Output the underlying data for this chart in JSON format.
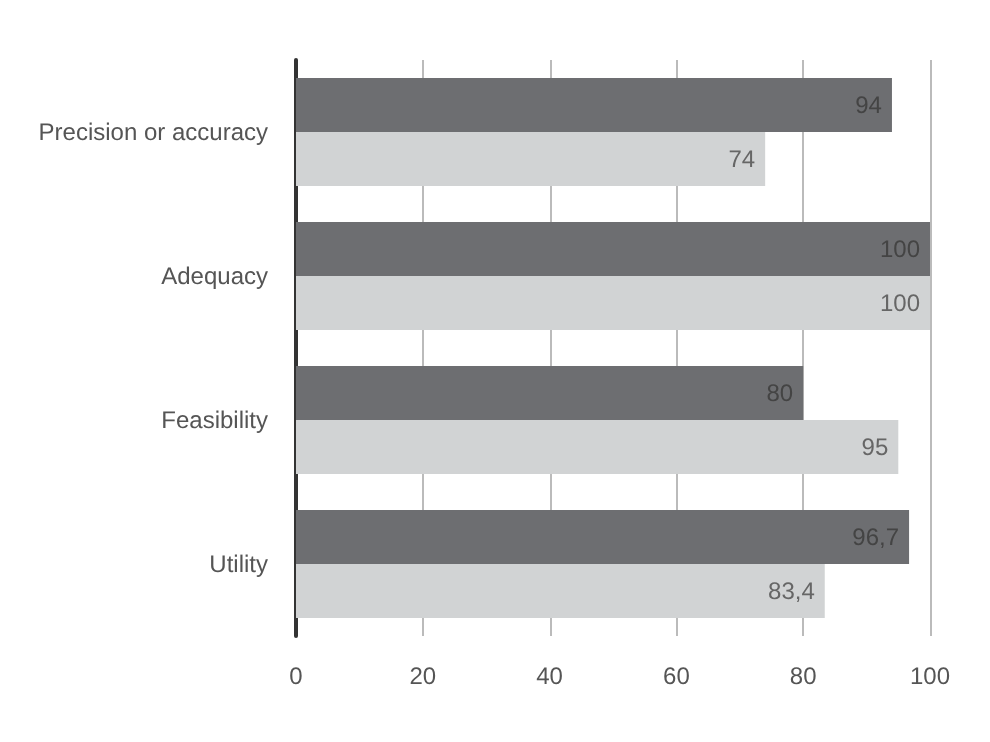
{
  "chart_data": {
    "type": "bar",
    "orientation": "horizontal",
    "categories": [
      "Precision or accuracy",
      "Adequacy",
      "Feasibility",
      "Utility"
    ],
    "series": [
      {
        "color": "#6d6e71",
        "values": [
          94,
          100,
          80,
          96.7
        ],
        "value_labels": [
          "94",
          "100",
          "80",
          "96,7"
        ]
      },
      {
        "color": "#d1d3d4",
        "values": [
          74,
          100,
          95,
          83.4
        ],
        "value_labels": [
          "74",
          "100",
          "95",
          "83,4"
        ]
      }
    ],
    "xlim": [
      0,
      100
    ],
    "xticks": [
      0,
      20,
      40,
      60,
      80,
      100
    ],
    "grid": "x"
  }
}
